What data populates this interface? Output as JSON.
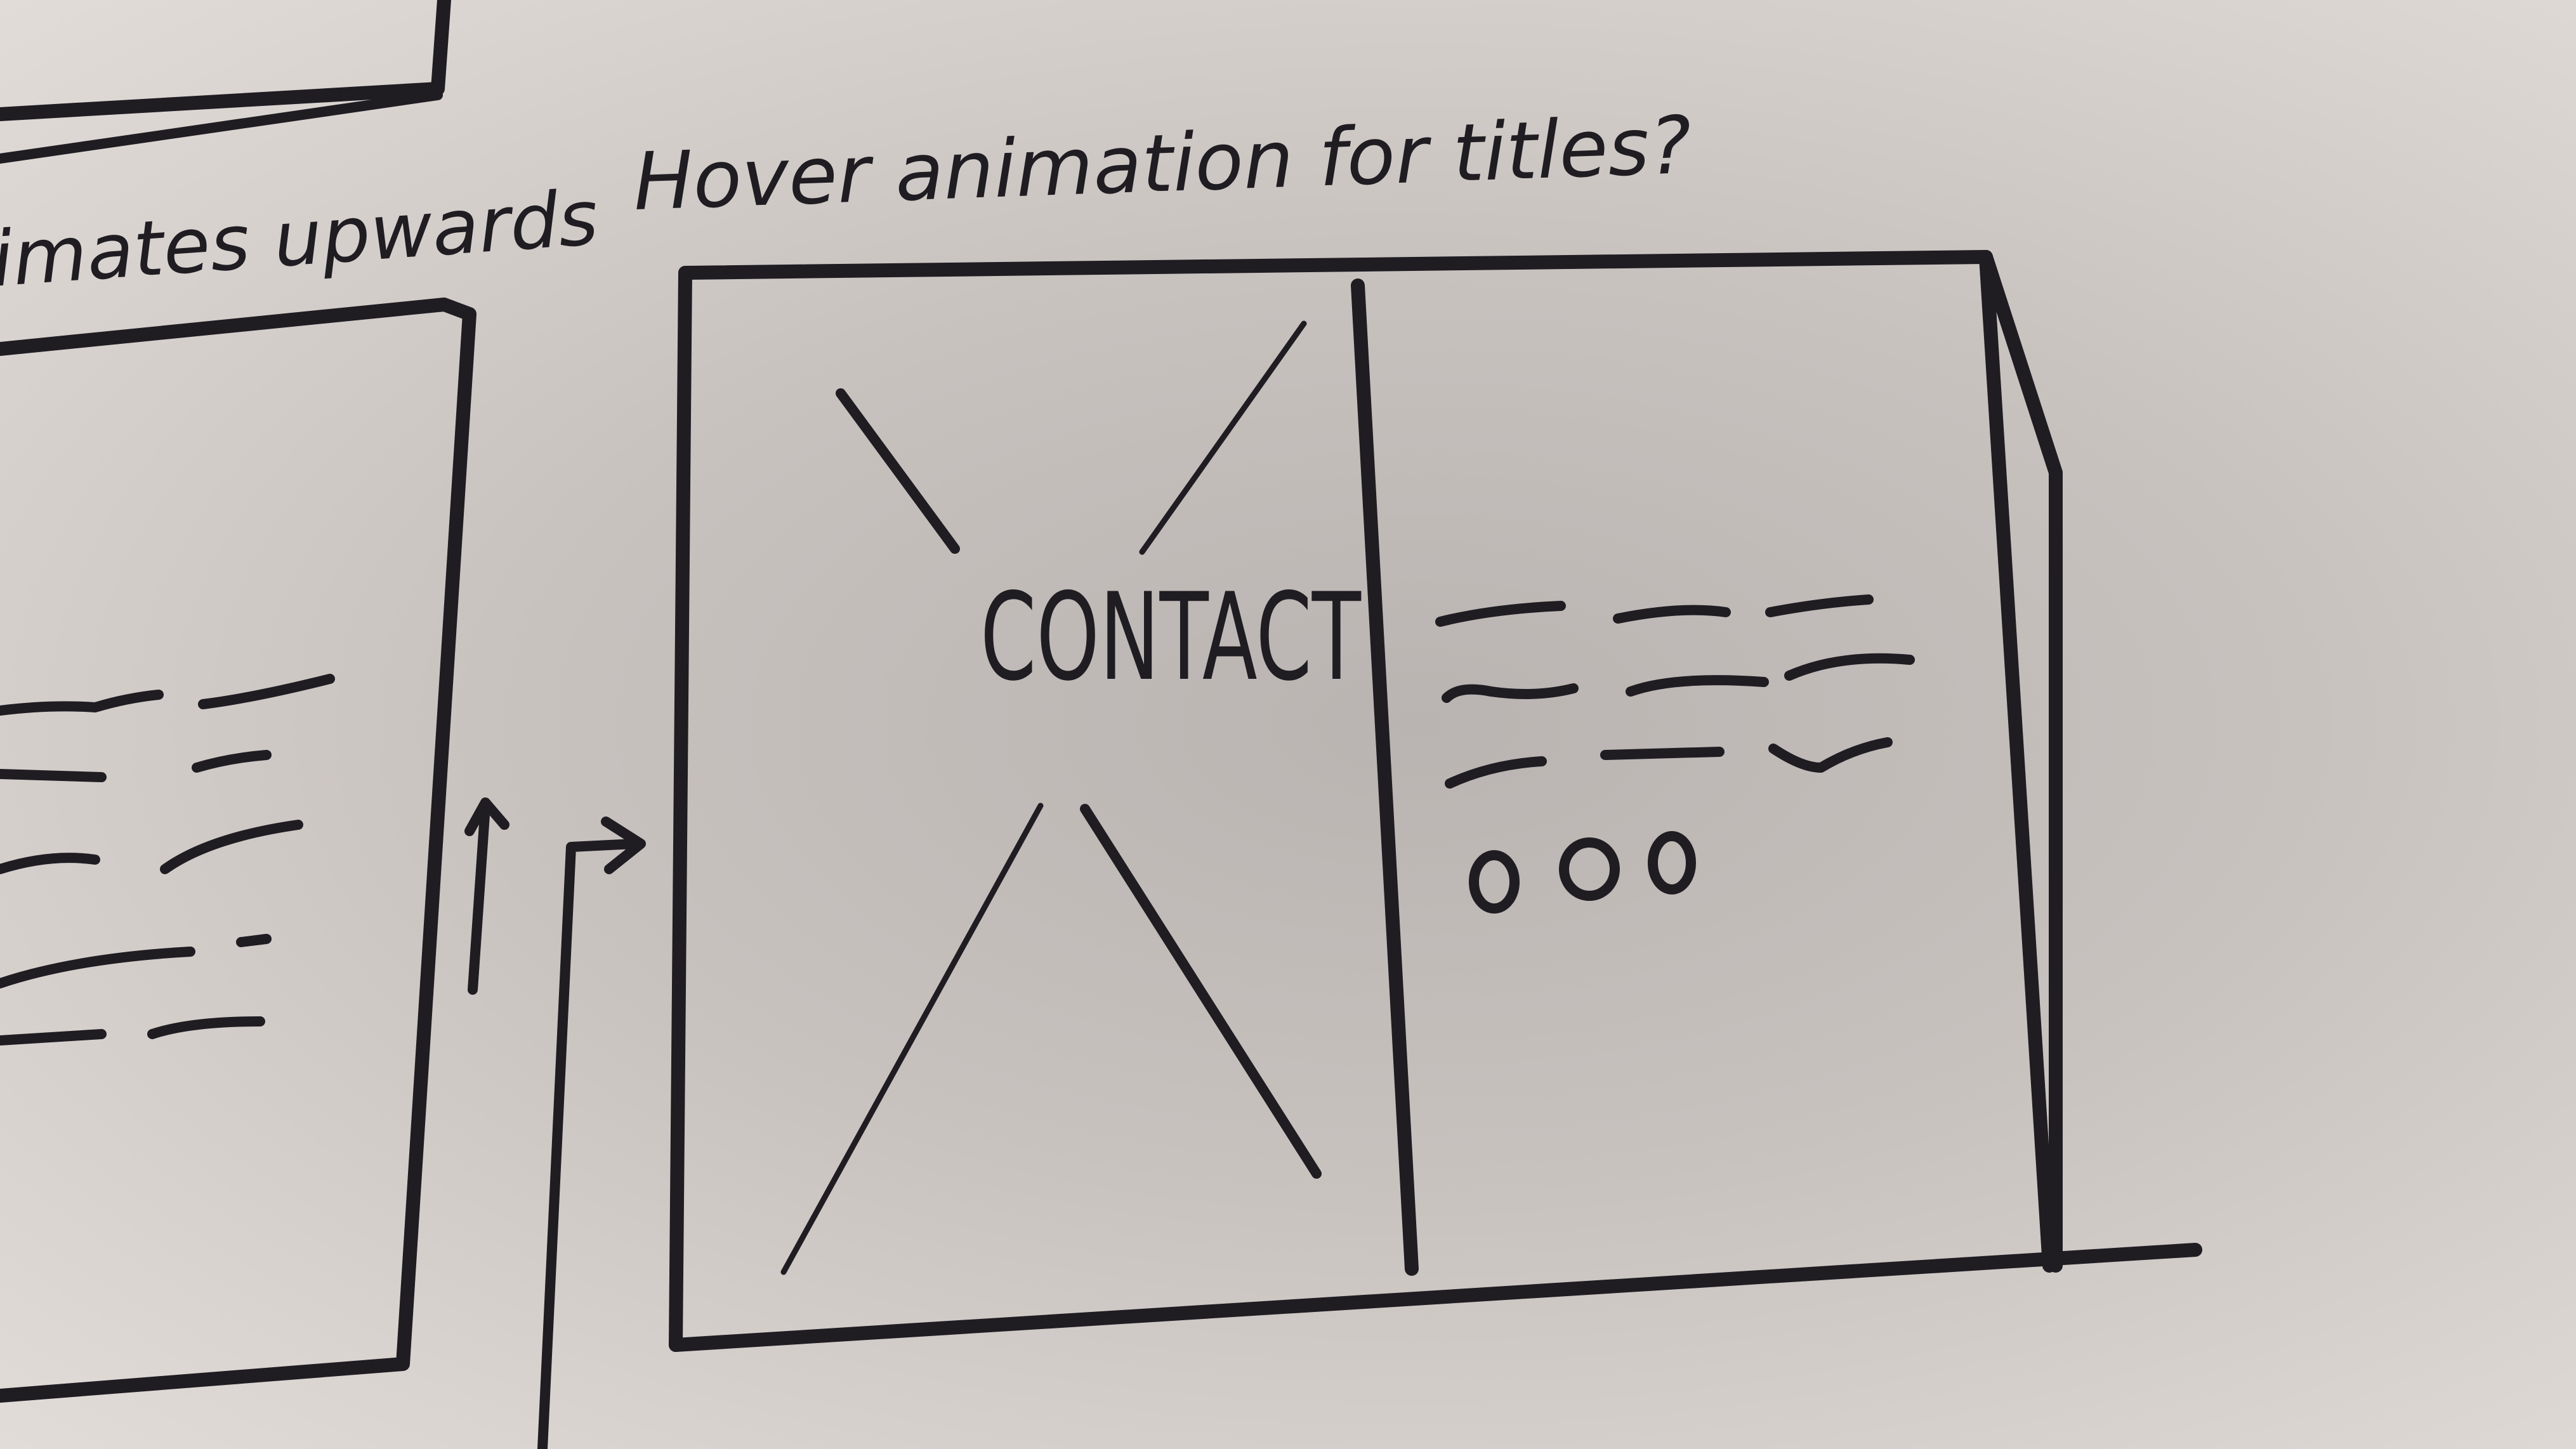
{
  "notes": {
    "left_caption": "imates upwards",
    "top_caption": "Hover animation for titles?"
  },
  "center_panel": {
    "label": "CONTACT",
    "dot_count": 3
  },
  "colors": {
    "paper": "#cbc5c2",
    "ink": "#1f1c22"
  }
}
